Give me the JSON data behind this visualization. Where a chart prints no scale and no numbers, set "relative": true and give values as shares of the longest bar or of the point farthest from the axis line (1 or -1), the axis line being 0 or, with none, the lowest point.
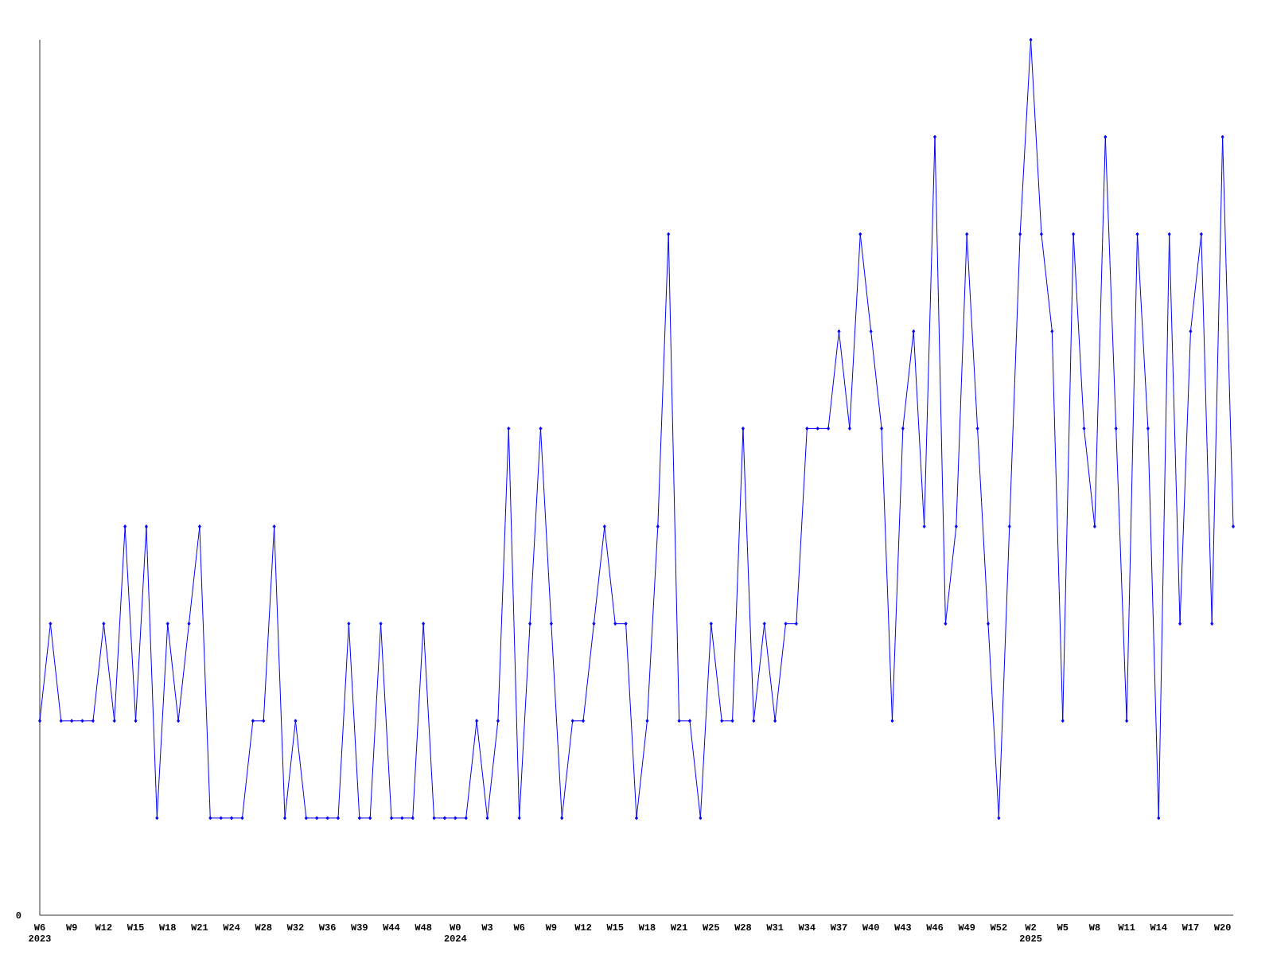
{
  "chart_data": {
    "type": "line",
    "relative": true,
    "color": "#0000ff",
    "marker": "diamond",
    "annotations": [
      "0"
    ],
    "categories": [
      "W6 2023",
      null,
      null,
      "W9",
      null,
      null,
      "W12",
      null,
      null,
      "W15",
      null,
      null,
      "W18",
      null,
      null,
      "W21",
      null,
      null,
      "W24",
      null,
      null,
      "W28",
      null,
      null,
      "W32",
      null,
      null,
      "W36",
      null,
      null,
      "W39",
      null,
      null,
      "W44",
      null,
      null,
      "W48",
      null,
      null,
      "W0 2024",
      null,
      null,
      "W3",
      null,
      null,
      "W6",
      null,
      null,
      "W9",
      null,
      null,
      "W12",
      null,
      null,
      "W15",
      null,
      null,
      "W18",
      null,
      null,
      "W21",
      null,
      null,
      "W25",
      null,
      null,
      "W28",
      null,
      null,
      "W31",
      null,
      null,
      "W34",
      null,
      null,
      "W37",
      null,
      null,
      "W40",
      null,
      null,
      "W43",
      null,
      null,
      "W46",
      null,
      null,
      "W49",
      null,
      null,
      "W52",
      null,
      null,
      "W2 2025",
      null,
      null,
      "W5",
      null,
      null,
      "W8",
      null,
      null,
      "W11",
      null,
      null,
      "W14",
      null,
      null,
      "W17",
      null,
      null,
      "W20",
      null
    ],
    "values": [
      0.222,
      0.333,
      0.222,
      0.222,
      0.222,
      0.222,
      0.333,
      0.222,
      0.444,
      0.222,
      0.444,
      0.111,
      0.333,
      0.222,
      0.333,
      0.444,
      0.111,
      0.111,
      0.111,
      0.111,
      0.222,
      0.222,
      0.444,
      0.111,
      0.222,
      0.111,
      0.111,
      0.111,
      0.111,
      0.333,
      0.111,
      0.111,
      0.333,
      0.111,
      0.111,
      0.111,
      0.333,
      0.111,
      0.111,
      0.111,
      0.111,
      0.222,
      0.111,
      0.222,
      0.556,
      0.111,
      0.333,
      0.556,
      0.333,
      0.111,
      0.222,
      0.222,
      0.333,
      0.444,
      0.333,
      0.333,
      0.111,
      0.222,
      0.444,
      0.778,
      0.222,
      0.222,
      0.111,
      0.333,
      0.222,
      0.222,
      0.556,
      0.222,
      0.333,
      0.222,
      0.333,
      0.333,
      0.556,
      0.556,
      0.556,
      0.667,
      0.556,
      0.778,
      0.667,
      0.556,
      0.222,
      0.556,
      0.667,
      0.444,
      0.889,
      0.333,
      0.444,
      0.778,
      0.556,
      0.333,
      0.111,
      0.444,
      0.778,
      1,
      0.778,
      0.667,
      0.222,
      0.778,
      0.556,
      0.444,
      0.889,
      0.556,
      0.222,
      0.778,
      0.556,
      0.111,
      0.778,
      0.333,
      0.667,
      0.778,
      0.333,
      0.889,
      0.444
    ]
  }
}
